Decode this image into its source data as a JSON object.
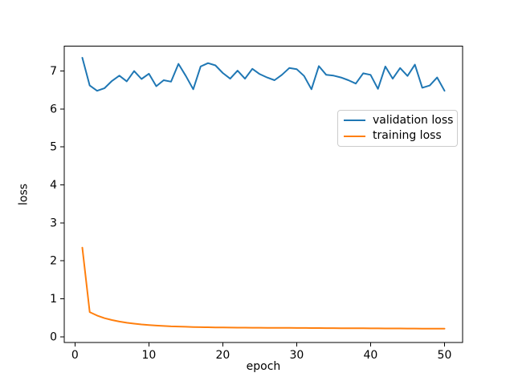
{
  "colors": {
    "validation": "#1f77b4",
    "training": "#ff7f0e",
    "text": "#000000",
    "legend_border": "#cccccc",
    "background": "#ffffff"
  },
  "chart_data": {
    "type": "line",
    "title": "",
    "xlabel": "epoch",
    "ylabel": "loss",
    "xlim": [
      -1.45,
      52.45
    ],
    "ylim": [
      -0.155,
      7.655
    ],
    "xticks": [
      0,
      10,
      20,
      30,
      40,
      50
    ],
    "yticks": [
      0,
      1,
      2,
      3,
      4,
      5,
      6,
      7
    ],
    "grid": false,
    "legend_position": "center-right",
    "x": [
      1,
      2,
      3,
      4,
      5,
      6,
      7,
      8,
      9,
      10,
      11,
      12,
      13,
      14,
      15,
      16,
      17,
      18,
      19,
      20,
      21,
      22,
      23,
      24,
      25,
      26,
      27,
      28,
      29,
      30,
      31,
      32,
      33,
      34,
      35,
      36,
      37,
      38,
      39,
      40,
      41,
      42,
      43,
      44,
      45,
      46,
      47,
      48,
      49,
      50
    ],
    "series": [
      {
        "name": "validation loss",
        "color": "#1f77b4",
        "values": [
          7.35,
          6.62,
          6.48,
          6.55,
          6.74,
          6.88,
          6.73,
          7.0,
          6.79,
          6.93,
          6.6,
          6.76,
          6.72,
          7.19,
          6.87,
          6.52,
          7.12,
          7.21,
          7.15,
          6.95,
          6.8,
          7.01,
          6.8,
          7.06,
          6.92,
          6.83,
          6.76,
          6.9,
          7.08,
          7.05,
          6.87,
          6.52,
          7.13,
          6.9,
          6.88,
          6.83,
          6.76,
          6.67,
          6.94,
          6.9,
          6.53,
          7.12,
          6.8,
          7.08,
          6.87,
          7.17,
          6.56,
          6.62,
          6.83,
          6.48
        ]
      },
      {
        "name": "training loss",
        "color": "#ff7f0e",
        "values": [
          2.35,
          0.65,
          0.56,
          0.49,
          0.44,
          0.4,
          0.37,
          0.345,
          0.325,
          0.31,
          0.295,
          0.285,
          0.275,
          0.27,
          0.263,
          0.258,
          0.253,
          0.25,
          0.247,
          0.245,
          0.243,
          0.241,
          0.24,
          0.238,
          0.237,
          0.236,
          0.235,
          0.234,
          0.233,
          0.232,
          0.231,
          0.23,
          0.229,
          0.228,
          0.227,
          0.226,
          0.225,
          0.224,
          0.223,
          0.222,
          0.221,
          0.22,
          0.219,
          0.218,
          0.217,
          0.216,
          0.215,
          0.214,
          0.213,
          0.212
        ]
      }
    ]
  }
}
